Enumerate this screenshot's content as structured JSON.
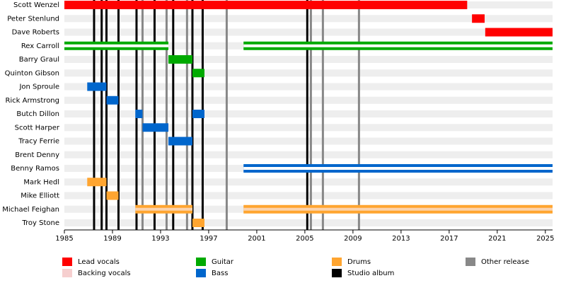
{
  "chart_data": {
    "type": "timeline",
    "xlim": [
      1985,
      2025.6
    ],
    "xticks": [
      1985,
      1989,
      1993,
      1997,
      2001,
      2005,
      2009,
      2013,
      2017,
      2021,
      2025
    ],
    "members": [
      {
        "name": "Scott Wenzel",
        "spans": [
          {
            "start": 1985,
            "end": 2018.5,
            "color": "#ff0000"
          }
        ]
      },
      {
        "name": "Peter Stenlund",
        "spans": [
          {
            "start": 2018.9,
            "end": 2019.95,
            "color": "#ff0000"
          }
        ]
      },
      {
        "name": "Dave Roberts",
        "spans": [
          {
            "start": 2020,
            "end": 2025.6,
            "color": "#ff0000"
          }
        ]
      },
      {
        "name": "Rex Carroll",
        "spans": [
          {
            "start": 1985,
            "end": 1993.65,
            "color": "#00aa00",
            "stripe": "#ffffff"
          },
          {
            "start": 1999.9,
            "end": 2025.6,
            "color": "#00aa00",
            "stripe": "#ffffff"
          }
        ]
      },
      {
        "name": "Barry Graul",
        "spans": [
          {
            "start": 1993.65,
            "end": 1995.65,
            "color": "#00aa00"
          }
        ]
      },
      {
        "name": "Quinton Gibson",
        "spans": [
          {
            "start": 1995.65,
            "end": 1996.65,
            "color": "#00aa00"
          }
        ]
      },
      {
        "name": "Jon Sproule",
        "spans": [
          {
            "start": 1986.9,
            "end": 1988.5,
            "color": "#0066cc"
          }
        ]
      },
      {
        "name": "Rick Armstrong",
        "spans": [
          {
            "start": 1988.5,
            "end": 1989.5,
            "color": "#0066cc"
          }
        ]
      },
      {
        "name": "Butch Dillon",
        "spans": [
          {
            "start": 1990.9,
            "end": 1991.5,
            "color": "#0066cc"
          },
          {
            "start": 1995.65,
            "end": 1996.65,
            "color": "#0066cc"
          }
        ]
      },
      {
        "name": "Scott Harper",
        "spans": [
          {
            "start": 1991.5,
            "end": 1993.65,
            "color": "#0066cc"
          }
        ]
      },
      {
        "name": "Tracy Ferrie",
        "spans": [
          {
            "start": 1993.65,
            "end": 1995.65,
            "color": "#0066cc"
          }
        ]
      },
      {
        "name": "Brent Denny",
        "spans": []
      },
      {
        "name": "Benny Ramos",
        "spans": [
          {
            "start": 1999.9,
            "end": 2025.6,
            "color": "#0066cc",
            "stripe": "#ffffff"
          }
        ]
      },
      {
        "name": "Mark Hedl",
        "spans": [
          {
            "start": 1986.9,
            "end": 1988.5,
            "color": "#ffa530"
          }
        ]
      },
      {
        "name": "Mike Elliott",
        "spans": [
          {
            "start": 1988.5,
            "end": 1989.5,
            "color": "#ffa530"
          }
        ]
      },
      {
        "name": "Michael Feighan",
        "spans": [
          {
            "start": 1990.9,
            "end": 1995.65,
            "color": "#ffa530",
            "stripe": "#fbd3ae"
          },
          {
            "start": 1999.9,
            "end": 2025.6,
            "color": "#ffa530",
            "stripe": "#fbd3ae"
          }
        ]
      },
      {
        "name": "Troy Stone",
        "spans": [
          {
            "start": 1995.65,
            "end": 1996.65,
            "color": "#ffa530"
          }
        ]
      }
    ],
    "studio_albums": [
      1987.47,
      1988.1,
      1988.5,
      1989.5,
      1991.0,
      1992.5,
      1994.05,
      1995.65,
      1996.5,
      2005.2
    ],
    "other_releases": [
      1991.5,
      1993.5,
      1995.2,
      1998.5,
      2005.5,
      2006.5,
      2009.5
    ],
    "studio_color": "#000000",
    "other_color": "#888888",
    "legend": [
      {
        "name": "Lead vocals",
        "color": "#ff0000"
      },
      {
        "name": "Backing vocals",
        "color": "#f6cfcf"
      },
      {
        "name": "Guitar",
        "color": "#00aa00"
      },
      {
        "name": "Bass",
        "color": "#0066cc"
      },
      {
        "name": "Drums",
        "color": "#ffa530"
      },
      {
        "name": "Studio album",
        "color": "#000000"
      },
      {
        "name": "Other release",
        "color": "#888888"
      }
    ]
  }
}
